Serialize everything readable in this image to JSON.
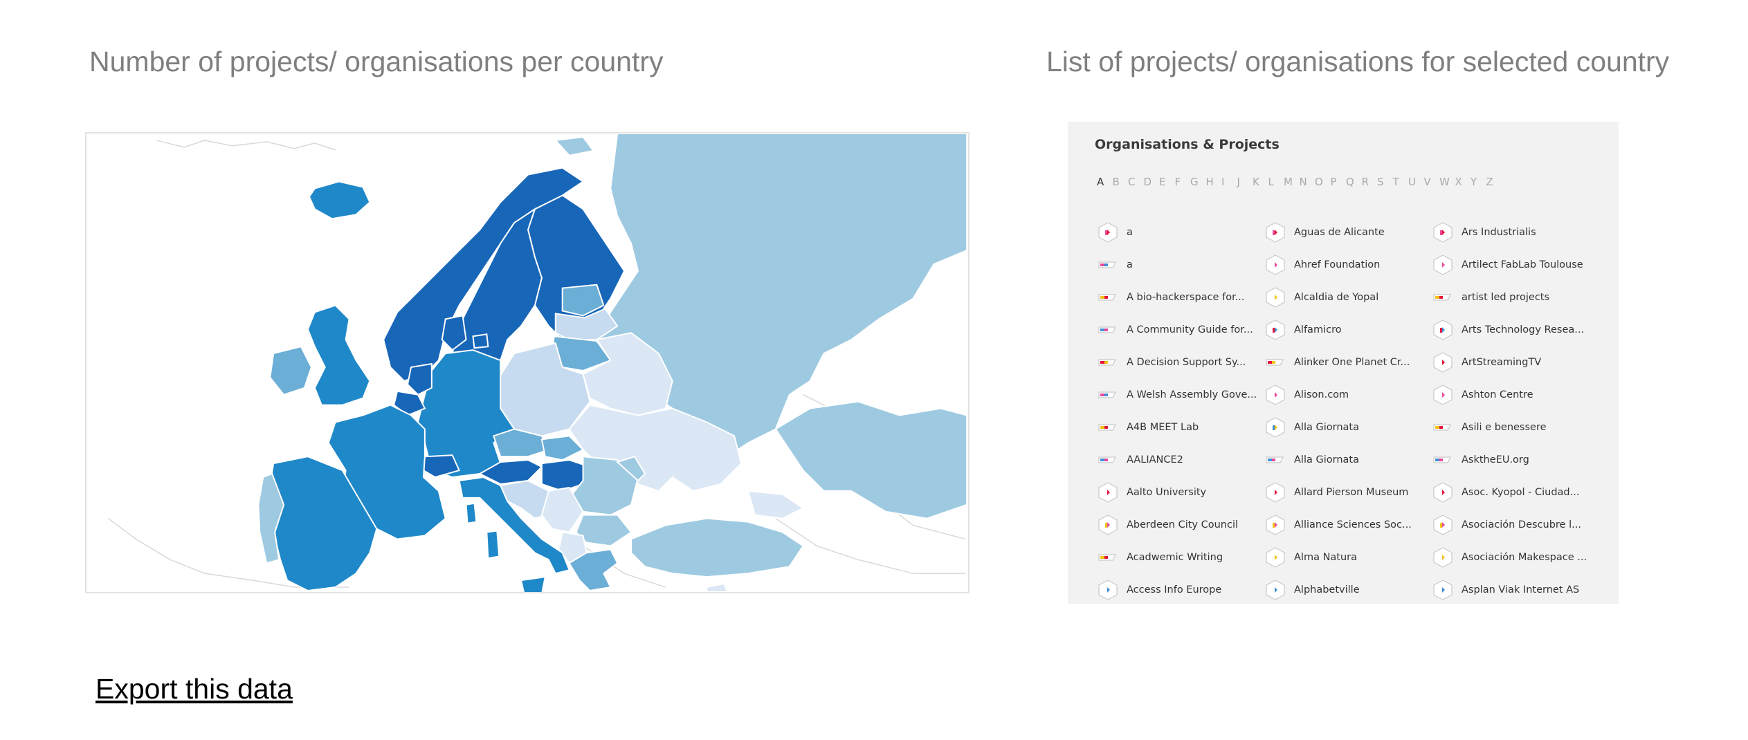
{
  "titles": {
    "map": "Number of projects/ organisations per country",
    "list": "List of projects/ organisations for selected country"
  },
  "list_panel": {
    "heading": "Organisations & Projects",
    "alphabet": [
      "A",
      "B",
      "C",
      "D",
      "E",
      "F",
      "G",
      "H",
      "I",
      "J",
      "K",
      "L",
      "M",
      "N",
      "O",
      "P",
      "Q",
      "R",
      "S",
      "T",
      "U",
      "V",
      "W",
      "X",
      "Y",
      "Z"
    ],
    "active_letter": "A",
    "columns": [
      [
        {
          "label": "a",
          "icon": "hexagon-icon"
        },
        {
          "label": "a",
          "icon": "tag-icon"
        },
        {
          "label": "A bio-hackerspace for...",
          "icon": "tag-icon"
        },
        {
          "label": "A Community Guide for...",
          "icon": "tag-icon"
        },
        {
          "label": "A Decision Support Sy...",
          "icon": "tag-icon"
        },
        {
          "label": "A Welsh Assembly Gove...",
          "icon": "tag-icon"
        },
        {
          "label": "A4B MEET Lab",
          "icon": "tag-icon"
        },
        {
          "label": "AALIANCE2",
          "icon": "tag-icon"
        },
        {
          "label": "Aalto University",
          "icon": "hexagon-icon"
        },
        {
          "label": "Aberdeen City Council",
          "icon": "hexagon-icon"
        },
        {
          "label": "Acadwemic Writing",
          "icon": "tag-icon"
        },
        {
          "label": "Access Info Europe",
          "icon": "hexagon-icon"
        }
      ],
      [
        {
          "label": "Aguas de Alicante",
          "icon": "hexagon-icon"
        },
        {
          "label": "Ahref Foundation",
          "icon": "hexagon-icon"
        },
        {
          "label": "Alcaldia de Yopal",
          "icon": "hexagon-icon"
        },
        {
          "label": "Alfamicro",
          "icon": "hexagon-icon"
        },
        {
          "label": "Alinker One Planet Cr...",
          "icon": "tag-icon"
        },
        {
          "label": "Alison.com",
          "icon": "hexagon-icon"
        },
        {
          "label": "Alla Giornata",
          "icon": "hexagon-icon"
        },
        {
          "label": "Alla Giornata",
          "icon": "tag-icon"
        },
        {
          "label": "Allard Pierson Museum",
          "icon": "hexagon-icon"
        },
        {
          "label": "Alliance Sciences Soc...",
          "icon": "hexagon-icon"
        },
        {
          "label": "Alma Natura",
          "icon": "hexagon-icon"
        },
        {
          "label": "Alphabetville",
          "icon": "hexagon-icon"
        }
      ],
      [
        {
          "label": "Ars Industrialis",
          "icon": "hexagon-icon"
        },
        {
          "label": "Artilect FabLab Toulouse",
          "icon": "hexagon-icon"
        },
        {
          "label": "artist led projects",
          "icon": "tag-icon"
        },
        {
          "label": "Arts Technology Resea...",
          "icon": "hexagon-icon"
        },
        {
          "label": "ArtStreamingTV",
          "icon": "hexagon-icon"
        },
        {
          "label": "Ashton Centre",
          "icon": "hexagon-icon"
        },
        {
          "label": "Asili e benessere",
          "icon": "tag-icon"
        },
        {
          "label": "AsktheEU.org",
          "icon": "tag-icon"
        },
        {
          "label": "Asoc. Kyopol - Ciudad...",
          "icon": "hexagon-icon"
        },
        {
          "label": "Asociación Descubre l...",
          "icon": "hexagon-icon"
        },
        {
          "label": "Asociación Makespace ...",
          "icon": "hexagon-icon"
        },
        {
          "label": "Asplan Viak Internet AS",
          "icon": "hexagon-icon"
        }
      ]
    ]
  },
  "export_label": "Export this data",
  "colors": {
    "level_1": "#dbe7f5",
    "level_2": "#c6dbef",
    "level_3": "#9ecae1",
    "level_4": "#6baed6",
    "level_5": "#1f88c9",
    "level_6": "#1766b8",
    "border": "#ffffff",
    "outline": "#cfcfcf",
    "accent_red": "#e3163c",
    "accent_pink": "#e84a9c",
    "accent_yellow": "#f2c31b",
    "accent_blue": "#3d8fd6"
  }
}
